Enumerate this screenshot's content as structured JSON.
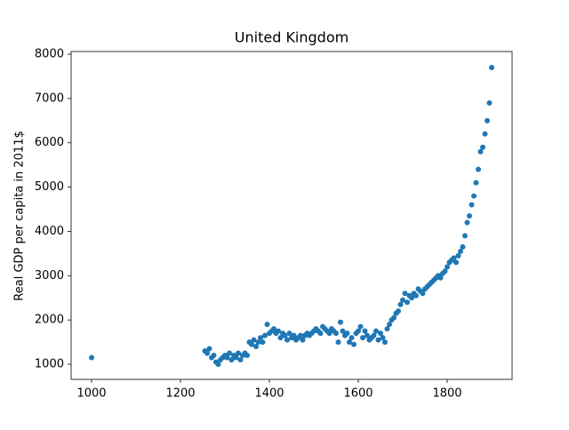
{
  "chart_data": {
    "type": "scatter",
    "title": "United Kingdom",
    "y_label": "Real GDP per capita in 2011$",
    "color": "#1f77b4",
    "x": [
      1000,
      1255,
      1260,
      1265,
      1270,
      1275,
      1280,
      1285,
      1290,
      1295,
      1300,
      1305,
      1310,
      1315,
      1320,
      1325,
      1330,
      1335,
      1340,
      1345,
      1350,
      1355,
      1360,
      1365,
      1370,
      1375,
      1380,
      1385,
      1390,
      1395,
      1400,
      1405,
      1410,
      1415,
      1420,
      1425,
      1430,
      1435,
      1440,
      1445,
      1450,
      1455,
      1460,
      1465,
      1470,
      1475,
      1480,
      1485,
      1490,
      1495,
      1500,
      1505,
      1510,
      1515,
      1520,
      1525,
      1530,
      1535,
      1540,
      1545,
      1550,
      1555,
      1560,
      1565,
      1570,
      1575,
      1580,
      1585,
      1590,
      1595,
      1600,
      1605,
      1610,
      1615,
      1620,
      1625,
      1630,
      1635,
      1640,
      1645,
      1650,
      1655,
      1660,
      1665,
      1670,
      1675,
      1680,
      1685,
      1690,
      1695,
      1700,
      1705,
      1710,
      1715,
      1720,
      1725,
      1730,
      1735,
      1740,
      1745,
      1750,
      1755,
      1760,
      1765,
      1770,
      1775,
      1780,
      1785,
      1790,
      1795,
      1800,
      1805,
      1810,
      1815,
      1820,
      1825,
      1830,
      1835,
      1840,
      1845,
      1850,
      1855,
      1860,
      1865,
      1870,
      1875,
      1880,
      1885,
      1890,
      1895,
      1900
    ],
    "values": [
      1150,
      1300,
      1250,
      1350,
      1150,
      1200,
      1050,
      1000,
      1100,
      1150,
      1200,
      1150,
      1250,
      1100,
      1200,
      1150,
      1250,
      1100,
      1200,
      1250,
      1200,
      1500,
      1450,
      1550,
      1400,
      1500,
      1600,
      1500,
      1650,
      1900,
      1700,
      1750,
      1800,
      1700,
      1750,
      1600,
      1700,
      1650,
      1550,
      1700,
      1600,
      1650,
      1550,
      1600,
      1650,
      1550,
      1650,
      1700,
      1650,
      1700,
      1750,
      1800,
      1750,
      1700,
      1850,
      1800,
      1750,
      1700,
      1800,
      1750,
      1700,
      1500,
      1950,
      1750,
      1650,
      1700,
      1500,
      1600,
      1450,
      1700,
      1750,
      1850,
      1600,
      1750,
      1650,
      1550,
      1600,
      1650,
      1750,
      1550,
      1700,
      1600,
      1500,
      1800,
      1900,
      2000,
      2050,
      2150,
      2200,
      2350,
      2450,
      2600,
      2400,
      2550,
      2500,
      2600,
      2550,
      2700,
      2650,
      2600,
      2700,
      2750,
      2800,
      2850,
      2900,
      2950,
      3000,
      2950,
      3050,
      3100,
      3200,
      3300,
      3350,
      3400,
      3300,
      3450,
      3550,
      3650,
      3900,
      4200,
      4350,
      4600,
      4800,
      5100,
      5400,
      5800,
      5900,
      6200,
      6500,
      6900,
      7700
    ],
    "xlim": [
      954,
      1946
    ],
    "ylim": [
      659,
      8061
    ],
    "xticks": [
      1000,
      1200,
      1400,
      1600,
      1800
    ],
    "yticks": [
      1000,
      2000,
      3000,
      4000,
      5000,
      6000,
      7000,
      8000
    ]
  }
}
